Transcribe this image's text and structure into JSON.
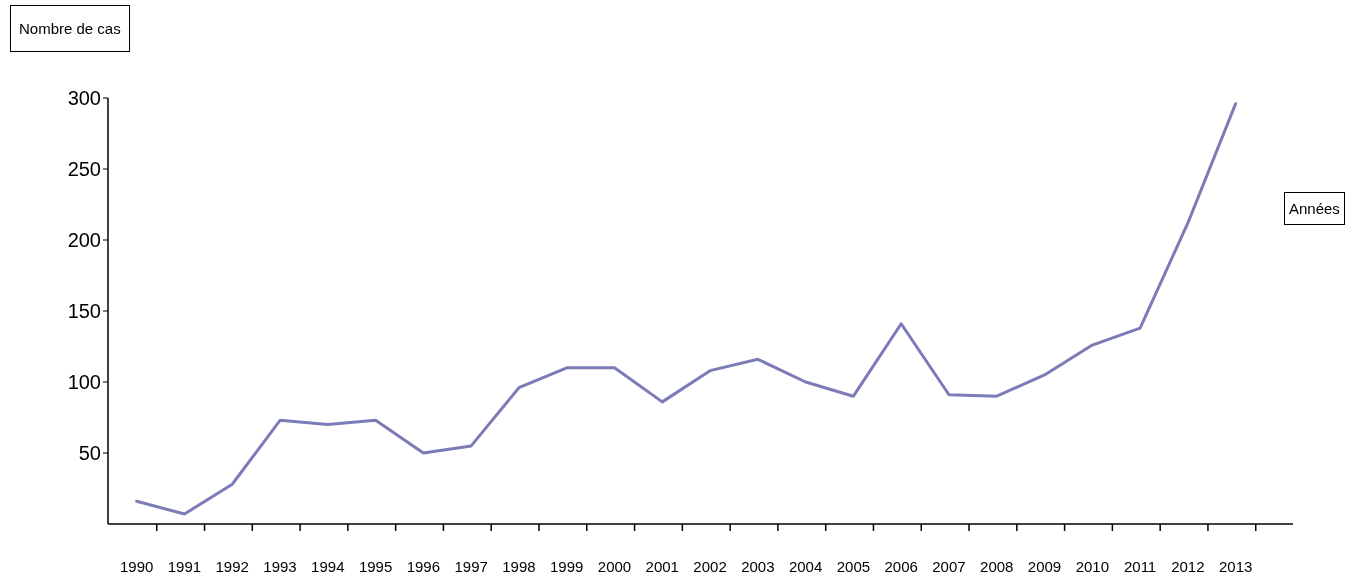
{
  "chart_data": {
    "type": "line",
    "xlabel": "Années",
    "ylabel": "Nombre de cas",
    "categories": [
      "1990",
      "1991",
      "1992",
      "1993",
      "1994",
      "1995",
      "1996",
      "1997",
      "1998",
      "1999",
      "2000",
      "2001",
      "2002",
      "2003",
      "2004",
      "2005",
      "2006",
      "2007",
      "2008",
      "2009",
      "2010",
      "2011",
      "2012",
      "2013"
    ],
    "series": [
      {
        "color": "#7b7bb8",
        "values": [
          16,
          7,
          28,
          73,
          70,
          73,
          50,
          55,
          96,
          110,
          110,
          86,
          108,
          116,
          100,
          90,
          141,
          91,
          90,
          105,
          126,
          138,
          212,
          296
        ]
      }
    ],
    "ylim": [
      0,
      300
    ],
    "yticks": [
      50,
      100,
      150,
      200,
      250,
      300
    ],
    "grid": false,
    "legend": false
  }
}
